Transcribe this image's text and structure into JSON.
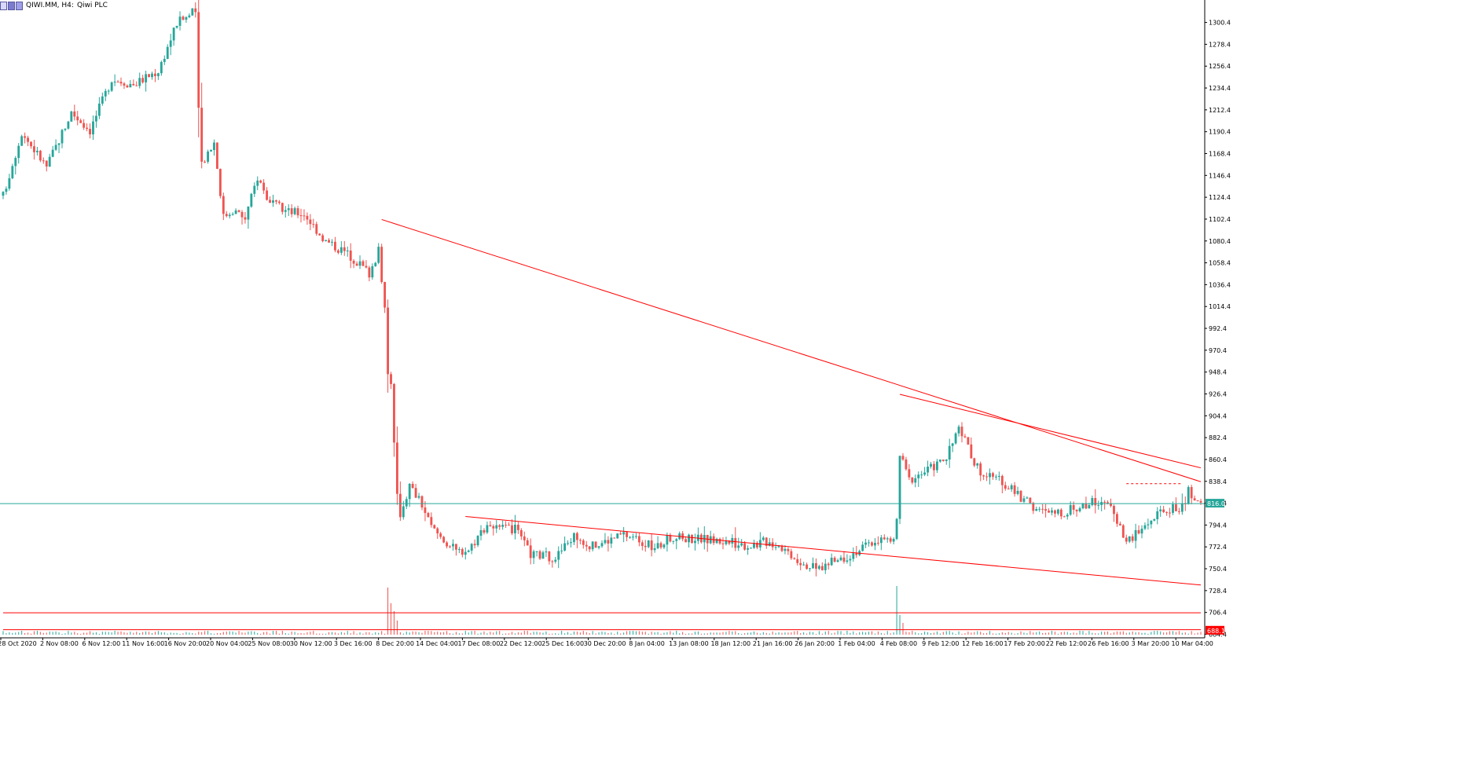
{
  "header": {
    "symbol_label": "QIWI.MM, H4:",
    "name_label": "Qiwi PLC"
  },
  "colors": {
    "bull": "#26a69a",
    "bear": "#ef5350",
    "trendline": "#ff0000",
    "price_line": "#26a69a",
    "grid": "#000000"
  },
  "chart_data": {
    "type": "candlestick",
    "title": "",
    "xlabel": "",
    "ylabel": "",
    "ylim": [
      684.0,
      1323.0
    ],
    "y_ticks": [
      "1300.4",
      "1278.4",
      "1256.4",
      "1234.4",
      "1212.4",
      "1190.4",
      "1168.4",
      "1146.4",
      "1124.4",
      "1102.4",
      "1080.4",
      "1058.4",
      "1036.4",
      "1014.4",
      "992.4",
      "970.4",
      "948.4",
      "926.4",
      "904.4",
      "882.4",
      "860.4",
      "838.4",
      "816.4",
      "794.4",
      "772.4",
      "750.4",
      "728.4",
      "706.4",
      "684.4"
    ],
    "x_ticks": [
      "28 Oct 2020",
      "2 Nov 08:00",
      "6 Nov 12:00",
      "11 Nov 16:00",
      "16 Nov 20:00",
      "20 Nov 04:00",
      "25 Nov 08:00",
      "30 Nov 12:00",
      "3 Dec 16:00",
      "8 Dec 20:00",
      "14 Dec 04:00",
      "17 Dec 08:00",
      "22 Dec 12:00",
      "25 Dec 16:00",
      "30 Dec 20:00",
      "8 Jan 04:00",
      "13 Jan 08:00",
      "18 Jan 12:00",
      "21 Jan 16:00",
      "26 Jan 20:00",
      "1 Feb 04:00",
      "4 Feb 08:00",
      "9 Feb 12:00",
      "12 Feb 16:00",
      "17 Feb 20:00",
      "22 Feb 12:00",
      "26 Feb 16:00",
      "3 Mar 20:00",
      "10 Mar 04:00"
    ],
    "current_price": "816.0",
    "level_price": "688.1",
    "anchors": [
      [
        0,
        1126
      ],
      [
        6,
        1190
      ],
      [
        14,
        1155
      ],
      [
        22,
        1210
      ],
      [
        28,
        1192
      ],
      [
        35,
        1244
      ],
      [
        42,
        1238
      ],
      [
        50,
        1252
      ],
      [
        56,
        1300
      ],
      [
        62,
        1312
      ],
      [
        63,
        1210
      ],
      [
        64,
        1160
      ],
      [
        68,
        1180
      ],
      [
        71,
        1105
      ],
      [
        74,
        1112
      ],
      [
        78,
        1103
      ],
      [
        82,
        1145
      ],
      [
        86,
        1118
      ],
      [
        92,
        1110
      ],
      [
        97,
        1108
      ],
      [
        104,
        1080
      ],
      [
        110,
        1070
      ],
      [
        114,
        1060
      ],
      [
        118,
        1048
      ],
      [
        121,
        1070
      ],
      [
        122,
        1038
      ],
      [
        123,
        1018
      ],
      [
        124,
        946
      ],
      [
        125,
        940
      ],
      [
        126,
        875
      ],
      [
        127,
        822
      ],
      [
        128,
        806
      ],
      [
        131,
        834
      ],
      [
        135,
        815
      ],
      [
        138,
        792
      ],
      [
        142,
        780
      ],
      [
        146,
        768
      ],
      [
        150,
        770
      ],
      [
        156,
        796
      ],
      [
        160,
        790
      ],
      [
        165,
        790
      ],
      [
        170,
        765
      ],
      [
        178,
        762
      ],
      [
        184,
        784
      ],
      [
        190,
        773
      ],
      [
        200,
        785
      ],
      [
        205,
        780
      ],
      [
        210,
        770
      ],
      [
        215,
        782
      ],
      [
        224,
        781
      ],
      [
        232,
        778
      ],
      [
        240,
        774
      ],
      [
        246,
        778
      ],
      [
        250,
        775
      ],
      [
        257,
        758
      ],
      [
        262,
        750
      ],
      [
        268,
        758
      ],
      [
        275,
        768
      ],
      [
        282,
        780
      ],
      [
        287,
        778
      ],
      [
        288,
        800
      ],
      [
        289,
        865
      ],
      [
        292,
        840
      ],
      [
        298,
        850
      ],
      [
        304,
        862
      ],
      [
        308,
        892
      ],
      [
        313,
        858
      ],
      [
        316,
        845
      ],
      [
        322,
        838
      ],
      [
        328,
        822
      ],
      [
        334,
        808
      ],
      [
        340,
        806
      ],
      [
        346,
        812
      ],
      [
        352,
        818
      ],
      [
        355,
        820
      ],
      [
        359,
        800
      ],
      [
        362,
        778
      ],
      [
        365,
        785
      ],
      [
        370,
        800
      ],
      [
        375,
        810
      ],
      [
        380,
        812
      ],
      [
        382,
        828
      ],
      [
        384,
        816
      ]
    ],
    "volume_spikes": [
      [
        124,
        60
      ],
      [
        125,
        40
      ],
      [
        126,
        30
      ],
      [
        127,
        18
      ],
      [
        288,
        62
      ],
      [
        289,
        25
      ],
      [
        290,
        15
      ]
    ],
    "trendlines": [
      {
        "x1": 122,
        "y1": 1102,
        "x2": 386,
        "y2": 838
      },
      {
        "x1": 289,
        "y1": 926,
        "x2": 386,
        "y2": 852
      },
      {
        "x1": 149,
        "y1": 803,
        "x2": 386,
        "y2": 734
      },
      {
        "x1": 0,
        "y1": 706,
        "x2": 386,
        "y2": 706
      },
      {
        "x1": 0,
        "y1": 689,
        "x2": 386,
        "y2": 689
      }
    ]
  }
}
